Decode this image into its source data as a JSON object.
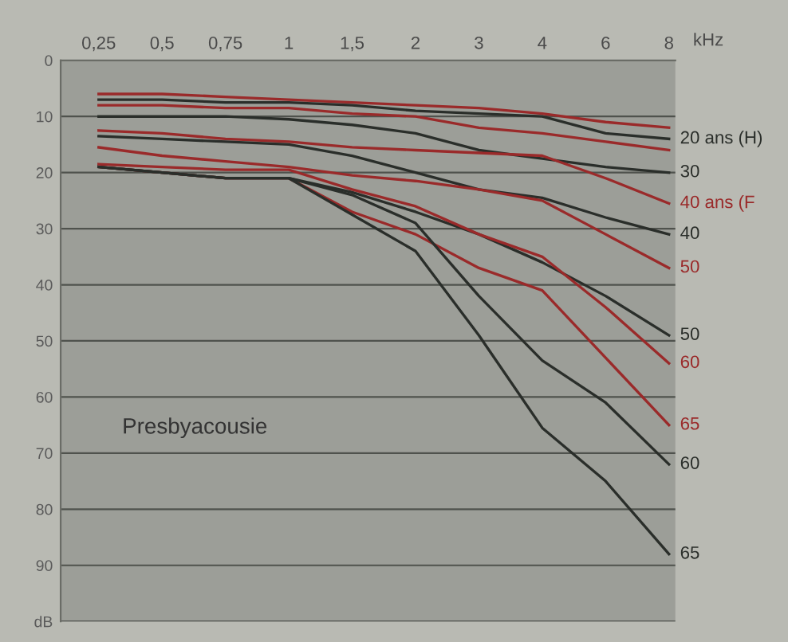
{
  "chart_data": {
    "type": "line",
    "categories": [
      "0,25",
      "0,5",
      "0,75",
      "1",
      "1,5",
      "2",
      "3",
      "4",
      "6",
      "8"
    ],
    "xlabel": "kHz",
    "ylim": [
      100,
      0
    ],
    "yticks": [
      0,
      10,
      20,
      30,
      40,
      50,
      60,
      70,
      80,
      90,
      {
        "value": 100,
        "label": "dB"
      }
    ],
    "grid": "y",
    "legend": false,
    "marker": "none",
    "line_style": "solid",
    "annotations": [
      "Presbyacousie"
    ],
    "series": [
      {
        "color": "#9a2a2a",
        "values": [
          6,
          6,
          6.5,
          7,
          7.5,
          8,
          8.5,
          9.5,
          11,
          12
        ]
      },
      {
        "color": "#9a2a2a",
        "values": [
          8,
          8,
          8.5,
          8.5,
          9.5,
          10,
          12,
          13,
          14.5,
          16
        ]
      },
      {
        "name": "20 ans (H)",
        "color": "#2a2e2a",
        "values": [
          7,
          7,
          7.5,
          7.5,
          8,
          9,
          9.5,
          10,
          13,
          14
        ]
      },
      {
        "name": "30",
        "color": "#2a2e2a",
        "values": [
          10,
          10,
          10,
          10.5,
          11.5,
          13,
          16,
          17.5,
          19,
          20
        ]
      },
      {
        "name": "40 ans (F",
        "color": "#9a2a2a",
        "values": [
          12.5,
          13,
          14,
          14.5,
          15.5,
          16,
          16.5,
          17,
          21,
          25.5
        ]
      },
      {
        "name": "40",
        "color": "#2a2e2a",
        "values": [
          13.5,
          14,
          14.5,
          15,
          17,
          20,
          23,
          24.5,
          28,
          31
        ]
      },
      {
        "name": "50",
        "color": "#9a2a2a",
        "values": [
          15.5,
          17,
          18,
          19,
          20.5,
          21.5,
          23,
          25,
          31,
          37
        ]
      },
      {
        "name": "50",
        "color": "#2a2e2a",
        "values": [
          19,
          20,
          21,
          21,
          23.5,
          27,
          31,
          36,
          42,
          49
        ]
      },
      {
        "name": "60",
        "color": "#9a2a2a",
        "values": [
          18.5,
          19,
          19.5,
          19.5,
          23,
          26,
          31,
          35,
          44,
          54
        ]
      },
      {
        "name": "65",
        "color": "#9a2a2a",
        "values": [
          19,
          20,
          21,
          21,
          27,
          31,
          37,
          41,
          53,
          65
        ]
      },
      {
        "name": "60",
        "color": "#2a2e2a",
        "values": [
          19,
          20,
          21,
          21,
          24,
          29,
          42,
          53.5,
          61,
          72
        ]
      },
      {
        "name": "65",
        "color": "#2a2e2a",
        "values": [
          19,
          20,
          21,
          21,
          27.5,
          34,
          49,
          65.5,
          75,
          88
        ]
      }
    ]
  }
}
